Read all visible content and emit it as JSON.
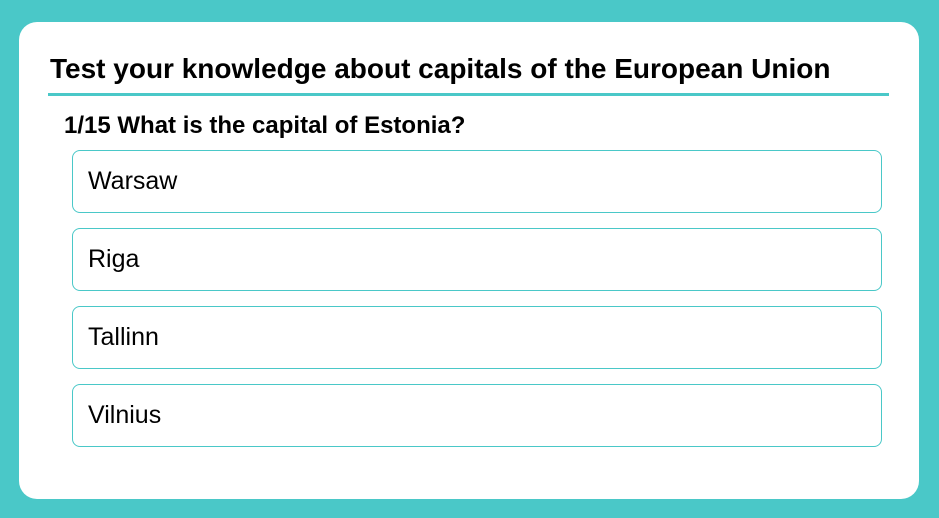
{
  "quiz": {
    "title": "Test your knowledge about capitals of the European Union",
    "question": "1/15 What is the capital of Estonia?",
    "options": [
      {
        "label": "Warsaw"
      },
      {
        "label": "Riga"
      },
      {
        "label": "Tallinn"
      },
      {
        "label": "Vilnius"
      }
    ]
  },
  "colors": {
    "background": "#4ac8c8",
    "card": "#ffffff",
    "accent": "#4ac8c8",
    "text": "#000000"
  }
}
